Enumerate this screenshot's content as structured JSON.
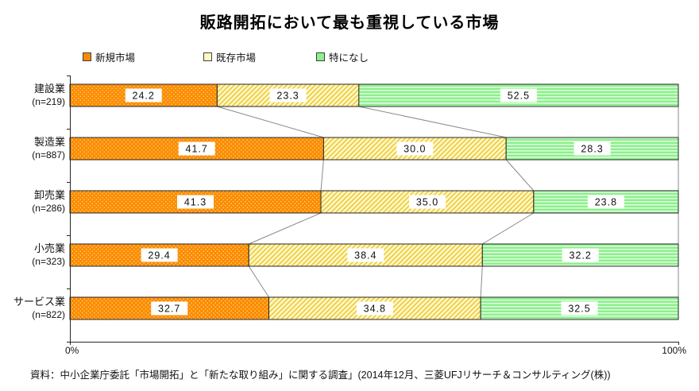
{
  "title": "販路開拓において最も重視している市場",
  "source_note": "資料：中小企業庁委託「市場開拓」と「新たな取り組み」に関する調査」(2014年12月、三菱UFJリサーチ＆コンサルティング(株))",
  "chart_data": {
    "type": "bar",
    "orientation": "horizontal",
    "stacked": true,
    "title": "販路開拓において最も重視している市場",
    "unit": "%",
    "xlim": [
      0,
      100
    ],
    "x_axis": {
      "min_label": "0%",
      "max_label": "100%"
    },
    "legend_position": "top",
    "grid": false,
    "categories": [
      {
        "label": "建設業",
        "n_label": "(n=219)"
      },
      {
        "label": "製造業",
        "n_label": "(n=887)"
      },
      {
        "label": "卸売業",
        "n_label": "(n=286)"
      },
      {
        "label": "小売業",
        "n_label": "(n=323)"
      },
      {
        "label": "サービス業",
        "n_label": "(n=822)"
      }
    ],
    "series": [
      {
        "name": "新規市場",
        "values": [
          24.2,
          41.7,
          41.3,
          29.4,
          32.7
        ],
        "fill": "#FB8A00",
        "accent": "#FFC45F",
        "pattern": "dots"
      },
      {
        "name": "既存市場",
        "values": [
          23.3,
          30.0,
          35.0,
          38.4,
          34.8
        ],
        "fill": "#FFF8C4",
        "accent": "#EDC93E",
        "pattern": "diagonal"
      },
      {
        "name": "特になし",
        "values": [
          52.5,
          28.3,
          23.8,
          32.2,
          32.5
        ],
        "fill": "#8DEF8D",
        "accent": "#DCFFDC",
        "pattern": "hlines"
      }
    ]
  }
}
